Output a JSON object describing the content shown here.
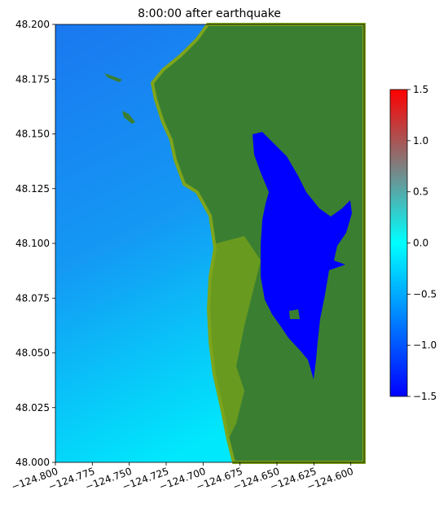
{
  "chart_data": {
    "type": "heatmap",
    "title": "8:00:00 after earthquake",
    "xlim": [
      -124.8,
      -124.591
    ],
    "ylim": [
      48.0,
      48.2
    ],
    "xticks": [
      {
        "value": -124.8,
        "label": "−124.800"
      },
      {
        "value": -124.775,
        "label": "−124.775"
      },
      {
        "value": -124.75,
        "label": "−124.750"
      },
      {
        "value": -124.725,
        "label": "−124.725"
      },
      {
        "value": -124.7,
        "label": "−124.700"
      },
      {
        "value": -124.675,
        "label": "−124.675"
      },
      {
        "value": -124.65,
        "label": "−124.650"
      },
      {
        "value": -124.625,
        "label": "−124.625"
      },
      {
        "value": -124.6,
        "label": "−124.600"
      }
    ],
    "yticks": [
      {
        "value": 48.0,
        "label": "48.000"
      },
      48.025,
      {
        "value": 48.05,
        "label": "48.050"
      },
      48.075,
      {
        "value": 48.1,
        "label": "48.100"
      },
      48.125,
      {
        "value": 48.15,
        "label": "48.150"
      },
      48.175,
      {
        "value": 48.2,
        "label": "48.200"
      }
    ],
    "colorbar": {
      "lim": [
        -1.5,
        1.5
      ],
      "ticks": [
        {
          "value": -1.5,
          "label": "−1.5"
        },
        {
          "value": -1.0,
          "label": "−1.0"
        },
        {
          "value": -0.5,
          "label": "−0.5"
        },
        {
          "value": 0,
          "label": "0.0"
        },
        0.5,
        {
          "value": 1.0,
          "label": "1.0"
        },
        1.5
      ],
      "colors": [
        "#0000ff",
        "#0080ff",
        "#00ffff",
        "#7f7f7f",
        "#ff0000"
      ]
    },
    "land_color": "#3a7f31"
  }
}
